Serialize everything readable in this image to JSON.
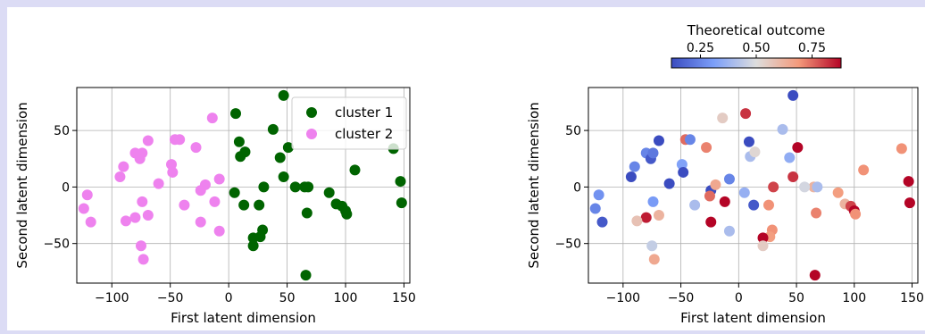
{
  "chart_data": [
    {
      "type": "scatter",
      "xlabel": "First latent dimension",
      "ylabel": "Second latent dimension",
      "xlim": [
        -130,
        155
      ],
      "ylim": [
        -85,
        88
      ],
      "xticks": [
        -100,
        -50,
        0,
        50,
        100,
        150
      ],
      "yticks": [
        -50,
        0,
        50
      ],
      "grid": true,
      "legend": {
        "placement": "top-right"
      },
      "series": [
        {
          "name": "cluster 1",
          "color": "#006400",
          "points": [
            [
              47,
              81
            ],
            [
              6,
              65
            ],
            [
              38,
              51
            ],
            [
              51,
              35
            ],
            [
              9,
              40
            ],
            [
              10,
              27
            ],
            [
              14,
              31
            ],
            [
              44,
              26
            ],
            [
              47,
              9
            ],
            [
              65,
              0
            ],
            [
              57,
              0
            ],
            [
              68,
              0
            ],
            [
              108,
              15
            ],
            [
              86,
              -5
            ],
            [
              92,
              -15
            ],
            [
              97,
              -17
            ],
            [
              100,
              -21
            ],
            [
              101,
              -24
            ],
            [
              30,
              0
            ],
            [
              5,
              -5
            ],
            [
              67,
              -23
            ],
            [
              13,
              -16
            ],
            [
              26,
              -16
            ],
            [
              29,
              -38
            ],
            [
              27,
              -44
            ],
            [
              21,
              -45
            ],
            [
              21,
              -52
            ],
            [
              66,
              -78
            ],
            [
              141,
              34
            ],
            [
              147,
              5
            ],
            [
              148,
              -14
            ]
          ]
        },
        {
          "name": "cluster 2",
          "color": "#ee82ee",
          "points": [
            [
              -14,
              61
            ],
            [
              -46,
              42
            ],
            [
              -42,
              42
            ],
            [
              -28,
              35
            ],
            [
              -69,
              41
            ],
            [
              -80,
              30
            ],
            [
              -76,
              25
            ],
            [
              -74,
              30
            ],
            [
              -90,
              18
            ],
            [
              -93,
              9
            ],
            [
              -49,
              20
            ],
            [
              -48,
              13
            ],
            [
              -60,
              3
            ],
            [
              -24,
              -3
            ],
            [
              -20,
              2
            ],
            [
              -8,
              7
            ],
            [
              -38,
              -16
            ],
            [
              -12,
              -13
            ],
            [
              -24,
              -31
            ],
            [
              -74,
              -13
            ],
            [
              -69,
              -25
            ],
            [
              -80,
              -27
            ],
            [
              -88,
              -30
            ],
            [
              -121,
              -7
            ],
            [
              -124,
              -19
            ],
            [
              -118,
              -31
            ],
            [
              -75,
              -52
            ],
            [
              -73,
              -64
            ],
            [
              -8,
              -39
            ]
          ]
        }
      ]
    },
    {
      "type": "scatter",
      "xlabel": "First latent dimension",
      "ylabel": "Second latent dimension",
      "xlim": [
        -130,
        155
      ],
      "ylim": [
        -85,
        88
      ],
      "xticks": [
        -100,
        -50,
        0,
        50,
        100,
        150
      ],
      "yticks": [
        -50,
        0,
        50
      ],
      "grid": true,
      "colorbar": {
        "label": "Theoretical outcome",
        "placement": "top",
        "colormap": "coolwarm",
        "range": [
          0.12,
          0.88
        ],
        "ticks": [
          0.25,
          0.5,
          0.75
        ],
        "tick_labels": [
          "0.25",
          "0.50",
          "0.75"
        ]
      },
      "series": [
        {
          "name": "",
          "points": [
            [
              47,
              81,
              0.1
            ],
            [
              6,
              65,
              0.82
            ],
            [
              38,
              51,
              0.4
            ],
            [
              51,
              35,
              0.88
            ],
            [
              9,
              40,
              0.08
            ],
            [
              10,
              27,
              0.4
            ],
            [
              14,
              31,
              0.52
            ],
            [
              44,
              26,
              0.35
            ],
            [
              47,
              9,
              0.82
            ],
            [
              65,
              0,
              0.62
            ],
            [
              57,
              0,
              0.48
            ],
            [
              68,
              0,
              0.4
            ],
            [
              108,
              15,
              0.7
            ],
            [
              86,
              -5,
              0.68
            ],
            [
              92,
              -15,
              0.62
            ],
            [
              97,
              -17,
              0.8
            ],
            [
              100,
              -21,
              0.88
            ],
            [
              101,
              -24,
              0.7
            ],
            [
              30,
              0,
              0.8
            ],
            [
              5,
              -5,
              0.36
            ],
            [
              67,
              -23,
              0.72
            ],
            [
              13,
              -16,
              0.15
            ],
            [
              26,
              -16,
              0.7
            ],
            [
              29,
              -38,
              0.7
            ],
            [
              27,
              -44,
              0.68
            ],
            [
              21,
              -45,
              0.98
            ],
            [
              21,
              -52,
              0.55
            ],
            [
              66,
              -78,
              0.95
            ],
            [
              141,
              34,
              0.7
            ],
            [
              147,
              5,
              0.98
            ],
            [
              148,
              -14,
              0.95
            ],
            [
              -14,
              61,
              0.55
            ],
            [
              -46,
              42,
              0.75
            ],
            [
              -42,
              42,
              0.25
            ],
            [
              -28,
              35,
              0.72
            ],
            [
              -69,
              41,
              0.05
            ],
            [
              -80,
              30,
              0.25
            ],
            [
              -76,
              25,
              0.15
            ],
            [
              -74,
              30,
              0.22
            ],
            [
              -90,
              18,
              0.25
            ],
            [
              -93,
              9,
              0.12
            ],
            [
              -49,
              20,
              0.32
            ],
            [
              -48,
              13,
              0.08
            ],
            [
              -60,
              3,
              0.0
            ],
            [
              -24,
              -3,
              0.05
            ],
            [
              -20,
              2,
              0.65
            ],
            [
              -8,
              7,
              0.25
            ],
            [
              -38,
              -16,
              0.4
            ],
            [
              -12,
              -13,
              0.98
            ],
            [
              -24,
              -31,
              0.9
            ],
            [
              -74,
              -13,
              0.3
            ],
            [
              -69,
              -25,
              0.62
            ],
            [
              -80,
              -27,
              0.85
            ],
            [
              -88,
              -30,
              0.58
            ],
            [
              -121,
              -7,
              0.28
            ],
            [
              -124,
              -19,
              0.25
            ],
            [
              -118,
              -31,
              0.15
            ],
            [
              -75,
              -52,
              0.45
            ],
            [
              -73,
              -64,
              0.65
            ],
            [
              -8,
              -39,
              0.4
            ],
            [
              -25,
              -8,
              0.75
            ]
          ]
        }
      ]
    }
  ]
}
